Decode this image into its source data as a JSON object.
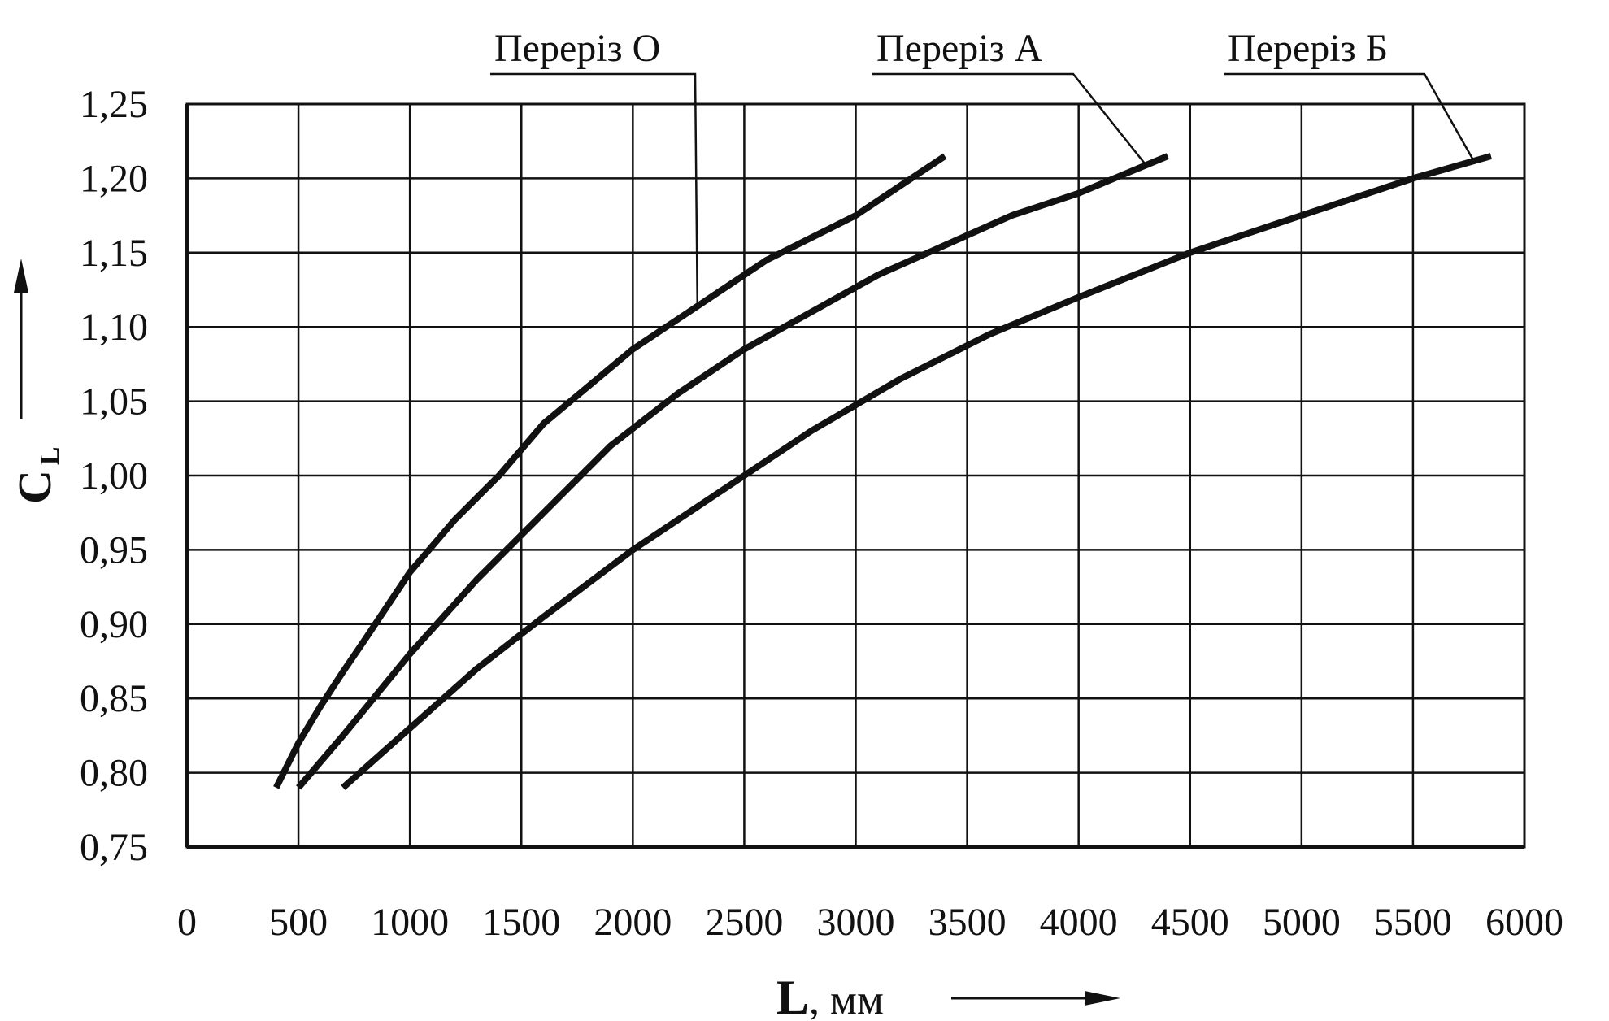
{
  "chart_data": {
    "type": "line",
    "x_tick_labels": [
      "0",
      "500",
      "1000",
      "1500",
      "2000",
      "2500",
      "3000",
      "3500",
      "4000",
      "4500",
      "5000",
      "5500",
      "6000"
    ],
    "y_tick_labels": [
      "0,75",
      "0,80",
      "0,85",
      "0,90",
      "0,95",
      "1,00",
      "1,05",
      "1,10",
      "1,15",
      "1,20",
      "1,25"
    ],
    "xlim": [
      0,
      6000
    ],
    "ylim": [
      0.75,
      1.25
    ],
    "xlabel": {
      "main": "L",
      "rest": ", мм"
    },
    "ylabel": {
      "main": "C",
      "sub": "L"
    },
    "grid": true,
    "series": [
      {
        "name": "Переріз О",
        "x": [
          400,
          500,
          600,
          700,
          800,
          1000,
          1200,
          1400,
          1600,
          1800,
          2000,
          2200,
          2400,
          2600,
          2800,
          3000,
          3200,
          3400
        ],
        "y": [
          0.79,
          0.82,
          0.845,
          0.868,
          0.89,
          0.935,
          0.97,
          1.0,
          1.035,
          1.06,
          1.085,
          1.105,
          1.125,
          1.145,
          1.16,
          1.175,
          1.195,
          1.215
        ]
      },
      {
        "name": "Переріз А",
        "x": [
          500,
          700,
          1000,
          1300,
          1600,
          1900,
          2200,
          2500,
          2800,
          3100,
          3400,
          3700,
          4000,
          4400
        ],
        "y": [
          0.79,
          0.825,
          0.88,
          0.93,
          0.975,
          1.02,
          1.055,
          1.085,
          1.11,
          1.135,
          1.155,
          1.175,
          1.19,
          1.215
        ]
      },
      {
        "name": "Переріз Б",
        "x": [
          700,
          1000,
          1300,
          1600,
          2000,
          2400,
          2800,
          3200,
          3600,
          4000,
          4500,
          5000,
          5500,
          5850
        ],
        "y": [
          0.79,
          0.83,
          0.87,
          0.905,
          0.95,
          0.99,
          1.03,
          1.065,
          1.095,
          1.12,
          1.15,
          1.175,
          1.2,
          1.215
        ]
      }
    ],
    "legend_placement": "top (callout labels with leader lines)"
  }
}
